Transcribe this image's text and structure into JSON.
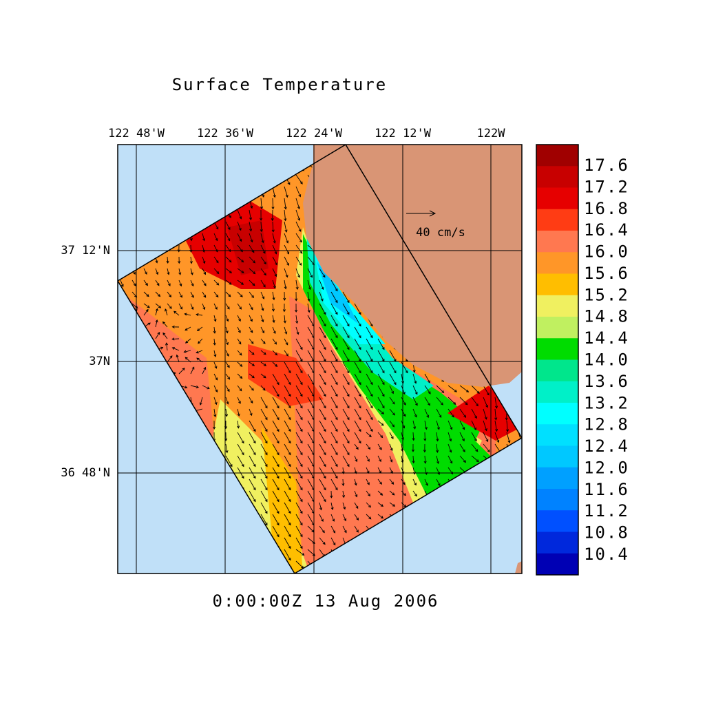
{
  "title": "Surface Temperature",
  "lon_labels": [
    "122 48'W",
    "122 36'W",
    "122 24'W",
    "122 12'W",
    "122W"
  ],
  "lat_labels": [
    "37 12'N",
    "37N",
    "36 48'N"
  ],
  "reference_vector": "40 cm/s",
  "time": "0:00:00Z  13 Aug 2006",
  "colorbar": {
    "labels": [
      "17.6",
      "17.2",
      "16.8",
      "16.4",
      "16.0",
      "15.6",
      "15.2",
      "14.8",
      "14.4",
      "14.0",
      "13.6",
      "13.2",
      "12.8",
      "12.4",
      "12.0",
      "11.6",
      "11.2",
      "10.8",
      "10.4"
    ],
    "colors": [
      "#a00000",
      "#c80000",
      "#e60000",
      "#ff3c14",
      "#ff7850",
      "#ff9628",
      "#ffbe00",
      "#f0f060",
      "#c0f060",
      "#00dc00",
      "#00e68c",
      "#00f0c8",
      "#00ffff",
      "#00e0ff",
      "#00c8ff",
      "#00a0ff",
      "#0082ff",
      "#0050ff",
      "#0028dc",
      "#0000b4"
    ]
  }
}
